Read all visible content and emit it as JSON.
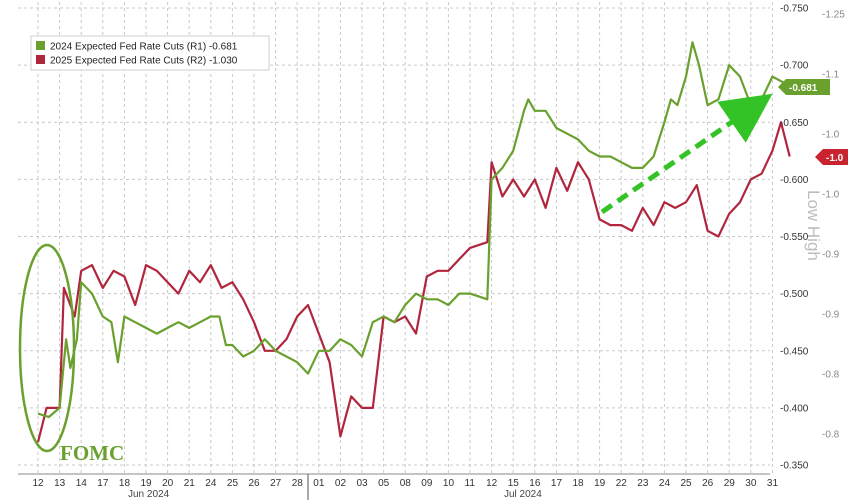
{
  "chart_data": {
    "type": "line",
    "title": "",
    "xlabel": "",
    "ylabel": "",
    "x_day_labels": [
      "12",
      "13",
      "14",
      "17",
      "18",
      "19",
      "20",
      "21",
      "24",
      "25",
      "26",
      "27",
      "28",
      "01",
      "02",
      "03",
      "05",
      "08",
      "09",
      "10",
      "11",
      "12",
      "15",
      "16",
      "17",
      "18",
      "19",
      "22",
      "23",
      "24",
      "25",
      "26",
      "29",
      "30",
      "31"
    ],
    "month_labels": [
      "Jun 2024",
      "Jul 2024"
    ],
    "y_left": {
      "min": -0.35,
      "max": -0.75,
      "ticks": [
        "-0.750",
        "-0.700",
        "-0.650",
        "-0.600",
        "-0.550",
        "-0.500",
        "-0.450",
        "-0.400",
        "-0.350"
      ]
    },
    "y_right": {
      "min": -0.7,
      "max": -1.25,
      "ticks": [
        "-1.25",
        "-1.1",
        "-1.0",
        "-1.0",
        "-0.9",
        "-0.9",
        "-0.8",
        "-0.8"
      ]
    },
    "series": [
      {
        "name": "2024 Expected Fed Rate Cuts (R1)",
        "last_value": "-0.681",
        "legend_text": "2024 Expected Fed Rate Cuts (R1)  -0.681",
        "color": "#6aa12e",
        "axis": "left",
        "points": [
          [
            0,
            -0.395
          ],
          [
            0.5,
            -0.392
          ],
          [
            1,
            -0.4
          ],
          [
            1.3,
            -0.46
          ],
          [
            1.5,
            -0.435
          ],
          [
            1.8,
            -0.46
          ],
          [
            2,
            -0.51
          ],
          [
            2.5,
            -0.5
          ],
          [
            3,
            -0.48
          ],
          [
            3.4,
            -0.475
          ],
          [
            3.7,
            -0.44
          ],
          [
            4,
            -0.48
          ],
          [
            4.5,
            -0.475
          ],
          [
            5,
            -0.47
          ],
          [
            5.5,
            -0.465
          ],
          [
            6,
            -0.47
          ],
          [
            6.5,
            -0.475
          ],
          [
            7,
            -0.47
          ],
          [
            7.5,
            -0.475
          ],
          [
            8,
            -0.48
          ],
          [
            8.4,
            -0.48
          ],
          [
            8.7,
            -0.455
          ],
          [
            9,
            -0.455
          ],
          [
            9.5,
            -0.445
          ],
          [
            10,
            -0.45
          ],
          [
            10.5,
            -0.46
          ],
          [
            11,
            -0.45
          ],
          [
            11.5,
            -0.445
          ],
          [
            12,
            -0.44
          ],
          [
            12.5,
            -0.43
          ],
          [
            13,
            -0.45
          ],
          [
            13.5,
            -0.45
          ],
          [
            14,
            -0.46
          ],
          [
            14.5,
            -0.455
          ],
          [
            15,
            -0.445
          ],
          [
            15.5,
            -0.475
          ],
          [
            16,
            -0.48
          ],
          [
            16.5,
            -0.475
          ],
          [
            17,
            -0.49
          ],
          [
            17.5,
            -0.5
          ],
          [
            18,
            -0.495
          ],
          [
            18.5,
            -0.495
          ],
          [
            19,
            -0.49
          ],
          [
            19.5,
            -0.5
          ],
          [
            20,
            -0.5
          ],
          [
            20.8,
            -0.495
          ],
          [
            21,
            -0.6
          ],
          [
            21.5,
            -0.61
          ],
          [
            22,
            -0.625
          ],
          [
            22.5,
            -0.66
          ],
          [
            22.7,
            -0.67
          ],
          [
            23,
            -0.66
          ],
          [
            23.5,
            -0.66
          ],
          [
            24,
            -0.645
          ],
          [
            24.5,
            -0.64
          ],
          [
            25,
            -0.635
          ],
          [
            25.5,
            -0.625
          ],
          [
            26,
            -0.62
          ],
          [
            26.5,
            -0.62
          ],
          [
            27,
            -0.615
          ],
          [
            27.5,
            -0.61
          ],
          [
            28,
            -0.61
          ],
          [
            28.5,
            -0.62
          ],
          [
            29,
            -0.65
          ],
          [
            29.3,
            -0.67
          ],
          [
            29.6,
            -0.665
          ],
          [
            30,
            -0.69
          ],
          [
            30.3,
            -0.72
          ],
          [
            30.6,
            -0.7
          ],
          [
            31,
            -0.665
          ],
          [
            31.5,
            -0.67
          ],
          [
            32,
            -0.7
          ],
          [
            32.5,
            -0.69
          ],
          [
            33,
            -0.665
          ],
          [
            33.5,
            -0.67
          ],
          [
            34,
            -0.69
          ],
          [
            34.5,
            -0.685
          ],
          [
            34.8,
            -0.68
          ]
        ]
      },
      {
        "name": "2025 Expected Fed Rate Cuts (R2)",
        "last_value": "-1.030",
        "legend_text": "2025 Expected Fed Rate Cuts (R2)  -1.030",
        "color": "#b0263d",
        "axis": "left",
        "points": [
          [
            0,
            -0.37
          ],
          [
            0.4,
            -0.4
          ],
          [
            1,
            -0.4
          ],
          [
            1.2,
            -0.505
          ],
          [
            1.4,
            -0.495
          ],
          [
            1.7,
            -0.48
          ],
          [
            2,
            -0.52
          ],
          [
            2.5,
            -0.525
          ],
          [
            3,
            -0.505
          ],
          [
            3.5,
            -0.52
          ],
          [
            4,
            -0.515
          ],
          [
            4.5,
            -0.49
          ],
          [
            5,
            -0.525
          ],
          [
            5.5,
            -0.52
          ],
          [
            6,
            -0.51
          ],
          [
            6.5,
            -0.5
          ],
          [
            7,
            -0.52
          ],
          [
            7.5,
            -0.51
          ],
          [
            8,
            -0.525
          ],
          [
            8.5,
            -0.505
          ],
          [
            9,
            -0.51
          ],
          [
            9.5,
            -0.495
          ],
          [
            10,
            -0.475
          ],
          [
            10.5,
            -0.45
          ],
          [
            11,
            -0.45
          ],
          [
            11.5,
            -0.46
          ],
          [
            12,
            -0.48
          ],
          [
            12.5,
            -0.49
          ],
          [
            13,
            -0.465
          ],
          [
            13.5,
            -0.44
          ],
          [
            14,
            -0.375
          ],
          [
            14.5,
            -0.41
          ],
          [
            15,
            -0.4
          ],
          [
            15.5,
            -0.4
          ],
          [
            16,
            -0.48
          ],
          [
            16.5,
            -0.475
          ],
          [
            17,
            -0.48
          ],
          [
            17.5,
            -0.465
          ],
          [
            18,
            -0.515
          ],
          [
            18.5,
            -0.52
          ],
          [
            19,
            -0.52
          ],
          [
            19.5,
            -0.53
          ],
          [
            20,
            -0.54
          ],
          [
            20.8,
            -0.545
          ],
          [
            21,
            -0.615
          ],
          [
            21.5,
            -0.585
          ],
          [
            22,
            -0.6
          ],
          [
            22.5,
            -0.585
          ],
          [
            23,
            -0.6
          ],
          [
            23.5,
            -0.575
          ],
          [
            24,
            -0.61
          ],
          [
            24.5,
            -0.59
          ],
          [
            25,
            -0.615
          ],
          [
            25.5,
            -0.6
          ],
          [
            26,
            -0.565
          ],
          [
            26.5,
            -0.56
          ],
          [
            27,
            -0.56
          ],
          [
            27.5,
            -0.555
          ],
          [
            28,
            -0.575
          ],
          [
            28.5,
            -0.56
          ],
          [
            29,
            -0.58
          ],
          [
            29.5,
            -0.575
          ],
          [
            30,
            -0.58
          ],
          [
            30.5,
            -0.595
          ],
          [
            31,
            -0.555
          ],
          [
            31.5,
            -0.55
          ],
          [
            32,
            -0.57
          ],
          [
            32.5,
            -0.58
          ],
          [
            33,
            -0.6
          ],
          [
            33.5,
            -0.605
          ],
          [
            34,
            -0.625
          ],
          [
            34.4,
            -0.65
          ],
          [
            34.8,
            -0.62
          ]
        ]
      }
    ],
    "annotations": {
      "fomc_label": "FOMC",
      "tag_r1": "-0.681",
      "tag_r2": "-1.0",
      "right_side_text": "Low  High",
      "arrow_color": "#34c326"
    },
    "grid": true,
    "legend_position": "top-left"
  }
}
